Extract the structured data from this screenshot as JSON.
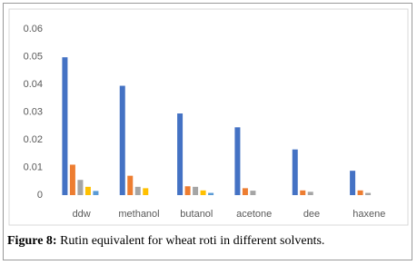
{
  "chart_data": {
    "type": "bar",
    "categories": [
      "ddw",
      "methanol",
      "butanol",
      "acetone",
      "dee",
      "haxene"
    ],
    "series": [
      {
        "color": "#4472c4",
        "values": [
          0.0498,
          0.0395,
          0.0295,
          0.0245,
          0.0165,
          0.0088
        ]
      },
      {
        "color": "#ed7d31",
        "values": [
          0.011,
          0.007,
          0.0032,
          0.0025,
          0.0017,
          0.0017
        ]
      },
      {
        "color": "#a5a5a5",
        "values": [
          0.0055,
          0.003,
          0.003,
          0.0016,
          0.0012,
          0.0008
        ]
      },
      {
        "color": "#ffc000",
        "values": [
          0.003,
          0.0025,
          0.0017,
          0,
          0,
          0
        ]
      },
      {
        "color": "#5b9bd5",
        "values": [
          0.0015,
          0,
          0.0008,
          0,
          0,
          0
        ]
      }
    ],
    "ylim": [
      0,
      0.06
    ],
    "yticks": [
      0,
      0.01,
      0.02,
      0.03,
      0.04,
      0.05,
      0.06
    ],
    "grid": false
  },
  "caption": {
    "label": "Figure 8:",
    "text": "Rutin equivalent for wheat roti in different solvents."
  }
}
